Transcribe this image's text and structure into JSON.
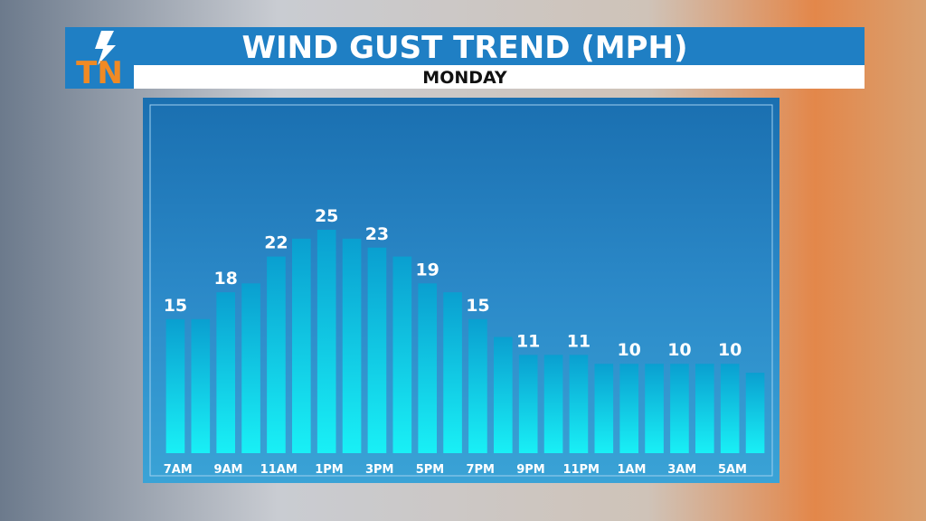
{
  "logo": "TN",
  "chart_data": {
    "type": "bar",
    "title": "WIND GUST TREND (MPH)",
    "subtitle": "MONDAY",
    "categories": [
      "7AM",
      null,
      "9AM",
      null,
      "11AM",
      null,
      "1PM",
      null,
      "3PM",
      null,
      "5PM",
      null,
      "7PM",
      null,
      "9PM",
      null,
      "11PM",
      null,
      "1AM",
      null,
      "3AM",
      null,
      "5AM",
      null
    ],
    "values": [
      15,
      15,
      18,
      19,
      22,
      24,
      25,
      24,
      23,
      22,
      19,
      18,
      15,
      13,
      11,
      11,
      11,
      10,
      10,
      10,
      10,
      10,
      10,
      9
    ],
    "value_labels": [
      15,
      null,
      18,
      null,
      22,
      null,
      25,
      null,
      23,
      null,
      19,
      null,
      15,
      null,
      11,
      null,
      11,
      null,
      10,
      null,
      10,
      null,
      10,
      null
    ],
    "ylim": [
      0,
      25
    ],
    "grid": false
  }
}
